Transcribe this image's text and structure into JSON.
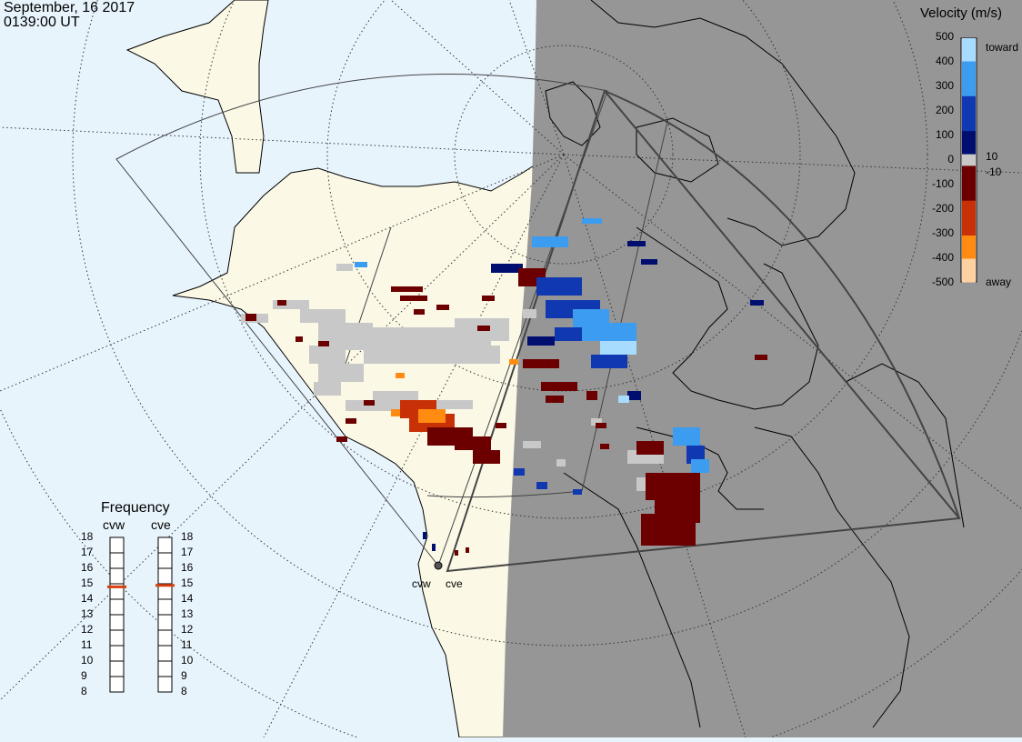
{
  "header": {
    "date": "September, 16 2017",
    "time": "0139:00 UT"
  },
  "velocity_legend": {
    "title": "Velocity (m/s)",
    "ticks": [
      "500",
      "400",
      "300",
      "200",
      "100",
      "0",
      "-100",
      "-200",
      "-300",
      "-400",
      "-500"
    ],
    "inner_ticks": [
      "10",
      "-10"
    ],
    "toward_label": "toward",
    "away_label": "away",
    "colors": {
      "toward_500": "#a8dcff",
      "toward_300": "#3c9cf0",
      "toward_100": "#1038b0",
      "toward_10": "#000e70",
      "zero": "#c8c8c8",
      "away_10": "#6c0000",
      "away_200": "#c83008",
      "away_400": "#ff8c10",
      "away_500": "#ffd0a0"
    }
  },
  "frequency_legend": {
    "title": "Frequency",
    "radar_a": "cvw",
    "radar_b": "cve",
    "levels": [
      "18",
      "17",
      "16",
      "15",
      "14",
      "13",
      "12",
      "11",
      "10",
      "9",
      "8"
    ],
    "radar_a_freq": 14.8,
    "radar_b_freq": 14.9,
    "marker_color": "#d84010"
  },
  "radars": {
    "west": "cvw",
    "east": "cve"
  },
  "map": {
    "day_color": "#e8f4fc",
    "land_day_color": "#fbf8e6",
    "night_color": "#969696",
    "groundscatter_color": "#c8c8c8"
  }
}
